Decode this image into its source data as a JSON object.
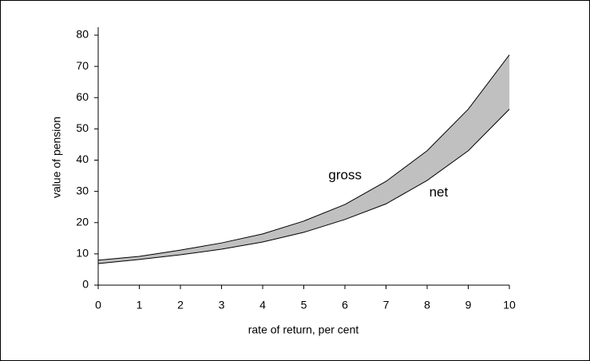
{
  "chart_data": {
    "type": "band",
    "x": [
      0,
      1,
      2,
      3,
      4,
      5,
      6,
      7,
      8,
      9,
      10
    ],
    "series": [
      {
        "name": "gross",
        "color": "#000000",
        "values": [
          8,
          9.2,
          11.2,
          13.5,
          16.4,
          20.5,
          25.8,
          33.2,
          43,
          56.3,
          73.7
        ]
      },
      {
        "name": "net",
        "color": "#000000",
        "values": [
          6.9,
          8.2,
          9.7,
          11.5,
          13.8,
          16.9,
          21,
          26,
          33.5,
          43,
          56.3
        ]
      }
    ],
    "fill_color": "#c0c0c0",
    "xlabel": "rate of return, per cent",
    "ylabel": "value of pension",
    "xlim": [
      0,
      10
    ],
    "xticks": [
      0,
      1,
      2,
      3,
      4,
      5,
      6,
      7,
      8,
      9,
      10
    ],
    "ylim": [
      0,
      80
    ],
    "yticks": [
      0,
      10,
      20,
      30,
      40,
      50,
      60,
      70,
      80
    ],
    "grid": false
  }
}
